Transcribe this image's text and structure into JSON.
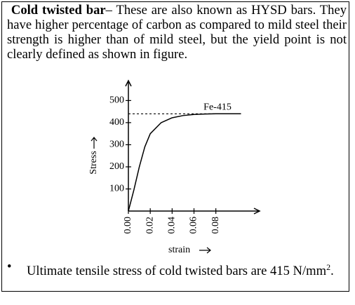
{
  "paragraph": {
    "term": "Cold twisted bar",
    "text": "– These are also known as HYSD bars. They have higher percentage of carbon as compared to mild steel their strength is higher than of mild steel, but the yield point is not clearly defined as shown in figure."
  },
  "chart_data": {
    "type": "line",
    "xlabel": "strain",
    "ylabel": "Stress",
    "x": [
      0,
      0.005,
      0.01,
      0.015,
      0.02,
      0.03,
      0.04,
      0.05,
      0.06,
      0.07,
      0.08,
      0.09,
      0.103
    ],
    "values": [
      0,
      95,
      200,
      290,
      350,
      400,
      422,
      432,
      437,
      439,
      440,
      440,
      440
    ],
    "color": "#000000",
    "xlim": [
      0,
      0.12
    ],
    "ylim": [
      0,
      590
    ],
    "xticks": [
      {
        "value": 0,
        "label": "0.00"
      },
      {
        "value": 0.02,
        "label": "0.02"
      },
      {
        "value": 0.04,
        "label": "0.04"
      },
      {
        "value": 0.06,
        "label": "0.06"
      },
      {
        "value": 0.08,
        "label": "0.08"
      }
    ],
    "yticks": [
      100,
      200,
      300,
      400,
      500
    ],
    "reference_line": {
      "value": 440,
      "label": "Fe-415"
    }
  },
  "bullet": {
    "text": "Ultimate tensile stress of cold twisted bars are 415 N/mm",
    "superscript": "2",
    "end": "."
  }
}
